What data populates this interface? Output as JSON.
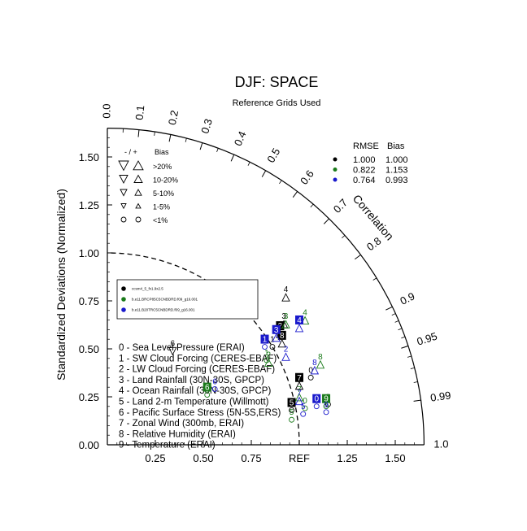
{
  "chart_data": {
    "type": "taylor",
    "title": "DJF: SPACE",
    "subtitle": "Reference Grids Used",
    "ylabel": "Standardized Deviations (Normalized)",
    "correlation_label": "Correlation",
    "ref_label": "REF",
    "x_ticks": [
      "0.25",
      "0.50",
      "0.75",
      "1.25",
      "1.50"
    ],
    "x_tick_values": [
      0.25,
      0.5,
      0.75,
      1.25,
      1.5
    ],
    "y_ticks": [
      "0.00",
      "0.25",
      "0.50",
      "0.75",
      "1.00",
      "1.25",
      "1.50"
    ],
    "y_tick_values": [
      0,
      0.25,
      0.5,
      0.75,
      1.0,
      1.25,
      1.5
    ],
    "max_sd": 1.65,
    "corr_ticks": [
      {
        "r": 0.0,
        "label": "0.0"
      },
      {
        "r": 0.1,
        "label": "0.1"
      },
      {
        "r": 0.2,
        "label": "0.2"
      },
      {
        "r": 0.3,
        "label": "0.3"
      },
      {
        "r": 0.4,
        "label": "0.4"
      },
      {
        "r": 0.5,
        "label": "0.5"
      },
      {
        "r": 0.6,
        "label": "0.6"
      },
      {
        "r": 0.7,
        "label": "0.7"
      },
      {
        "r": 0.8,
        "label": "0.8"
      },
      {
        "r": 0.9,
        "label": "0.9"
      },
      {
        "r": 0.95,
        "label": "0.95"
      },
      {
        "r": 0.99,
        "label": "0.99"
      },
      {
        "r": 1.0,
        "label": "1.0"
      }
    ],
    "bias_legend": {
      "header_sign": "- / +",
      "header": "Bias",
      "rows": [
        ">20%",
        "10-20%",
        "5-10%",
        "1-5%",
        "<1%"
      ]
    },
    "rmse_table": {
      "headers": [
        "RMSE",
        "Bias"
      ],
      "rows": [
        {
          "color": "#000000",
          "rmse": "1.000",
          "bias": "1.000"
        },
        {
          "color": "#1a7a1a",
          "rmse": "0.822",
          "bias": "1.153"
        },
        {
          "color": "#1a1acc",
          "rmse": "0.764",
          "bias": "0.993"
        }
      ]
    },
    "cases": [
      {
        "name": "ccsm4_5_fv1.9x2.5",
        "color": "#000000"
      },
      {
        "name": "b.e11.BRCP85C5CNBDRD.f09_g16.001",
        "color": "#1a7a1a"
      },
      {
        "name": "b.e11.B20TRC5CNBDRD.f09_g16.001",
        "color": "#1a1acc"
      }
    ],
    "variables": [
      "0 - Sea Level Pressure (ERAI)",
      "1 - SW Cloud Forcing (CERES-EBAF)",
      "2 - LW Cloud Forcing (CERES-EBAF)",
      "3 - Land Rainfall (30N-30S, GPCP)",
      "4 - Ocean Rainfall (30N-30S, GPCP)",
      "5 - Land 2-m Temperature (Willmott)",
      "6 - Pacific Surface Stress (5N-5S,ERS)",
      "7 - Zonal Wind (300mb, ERAI)",
      "8 - Relative Humidity (ERAI)",
      "9 - Temperature (ERAI)"
    ],
    "colors": {
      "black": "#000000",
      "green": "#1a7a1a",
      "blue": "#1a1acc"
    },
    "points": [
      {
        "case": 0,
        "var": "0",
        "x": 1.06,
        "y": 0.38,
        "marker": "circle",
        "boxed": false
      },
      {
        "case": 0,
        "var": "1",
        "x": 0.86,
        "y": 0.54,
        "marker": "circle",
        "boxed": false
      },
      {
        "case": 0,
        "var": "2",
        "x": 0.9,
        "y": 0.61,
        "marker": "up",
        "boxed": true
      },
      {
        "case": 0,
        "var": "3",
        "x": 0.92,
        "y": 0.66,
        "marker": "up",
        "boxed": false
      },
      {
        "case": 0,
        "var": "4",
        "x": 0.93,
        "y": 0.8,
        "marker": "up",
        "boxed": false
      },
      {
        "case": 0,
        "var": "5",
        "x": 0.96,
        "y": 0.21,
        "marker": "circle",
        "boxed": true
      },
      {
        "case": 0,
        "var": "6",
        "x": 0.34,
        "y": 0.52,
        "marker": "down",
        "boxed": false
      },
      {
        "case": 0,
        "var": "7",
        "x": 1.0,
        "y": 0.34,
        "marker": "up",
        "boxed": true
      },
      {
        "case": 0,
        "var": "8",
        "x": 0.91,
        "y": 0.56,
        "marker": "up",
        "boxed": true
      },
      {
        "case": 0,
        "var": "9",
        "x": 1.15,
        "y": 0.24,
        "marker": "circle",
        "boxed": false
      },
      {
        "case": 1,
        "var": "0",
        "x": 1.03,
        "y": 0.22,
        "marker": "circle",
        "boxed": false
      },
      {
        "case": 1,
        "var": "1",
        "x": 0.83,
        "y": 0.47,
        "marker": "circle",
        "boxed": false
      },
      {
        "case": 1,
        "var": "2",
        "x": 0.84,
        "y": 0.46,
        "marker": "up",
        "boxed": false
      },
      {
        "case": 1,
        "var": "3",
        "x": 0.93,
        "y": 0.66,
        "marker": "up",
        "boxed": false
      },
      {
        "case": 1,
        "var": "4",
        "x": 1.03,
        "y": 0.68,
        "marker": "up",
        "boxed": false
      },
      {
        "case": 1,
        "var": "5",
        "x": 0.96,
        "y": 0.16,
        "marker": "circle",
        "boxed": false
      },
      {
        "case": 1,
        "var": "6",
        "x": 0.52,
        "y": 0.29,
        "marker": "circle",
        "boxed": true
      },
      {
        "case": 1,
        "var": "7",
        "x": 1.0,
        "y": 0.28,
        "marker": "up",
        "boxed": false
      },
      {
        "case": 1,
        "var": "8",
        "x": 1.11,
        "y": 0.45,
        "marker": "up",
        "boxed": false
      },
      {
        "case": 1,
        "var": "9",
        "x": 1.14,
        "y": 0.23,
        "marker": "circle",
        "boxed": true
      },
      {
        "case": 2,
        "var": "0",
        "x": 1.09,
        "y": 0.23,
        "marker": "circle",
        "boxed": true
      },
      {
        "case": 2,
        "var": "1",
        "x": 0.82,
        "y": 0.54,
        "marker": "circle",
        "boxed": true
      },
      {
        "case": 2,
        "var": "2",
        "x": 0.93,
        "y": 0.49,
        "marker": "up",
        "boxed": false
      },
      {
        "case": 2,
        "var": "3",
        "x": 0.88,
        "y": 0.59,
        "marker": "up",
        "boxed": true
      },
      {
        "case": 2,
        "var": "4",
        "x": 1.0,
        "y": 0.64,
        "marker": "up",
        "boxed": true
      },
      {
        "case": 2,
        "var": "5",
        "x": 1.02,
        "y": 0.19,
        "marker": "circle",
        "boxed": false
      },
      {
        "case": 2,
        "var": "6",
        "x": 0.56,
        "y": 0.32,
        "marker": "circle",
        "boxed": false
      },
      {
        "case": 2,
        "var": "7",
        "x": 1.0,
        "y": 0.26,
        "marker": "up",
        "boxed": false
      },
      {
        "case": 2,
        "var": "8",
        "x": 1.08,
        "y": 0.42,
        "marker": "up",
        "boxed": false
      },
      {
        "case": 2,
        "var": "9",
        "x": 1.14,
        "y": 0.2,
        "marker": "circle",
        "boxed": false
      }
    ]
  }
}
